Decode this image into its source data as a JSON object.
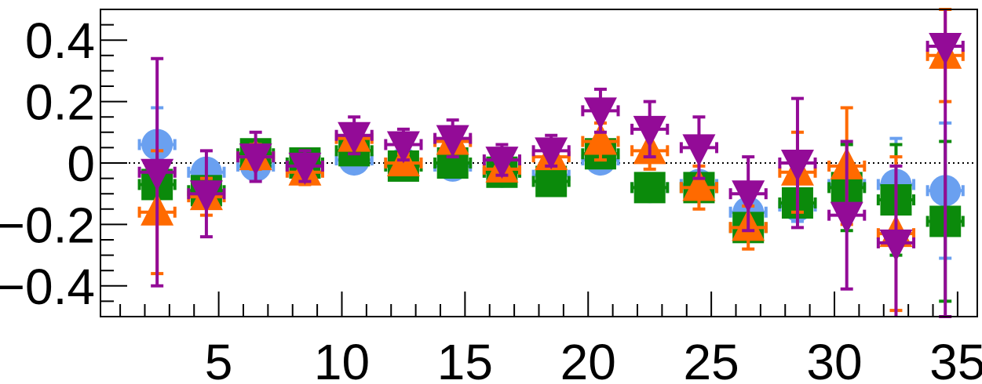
{
  "chart_data": {
    "type": "scatter",
    "title": "",
    "xlabel": "",
    "ylabel": "",
    "xlim": [
      0.2,
      35.8
    ],
    "ylim": [
      -0.5,
      0.5
    ],
    "x_ticks": [
      5,
      10,
      15,
      20,
      25,
      30,
      35
    ],
    "x_tick_labels": [
      "5",
      "10",
      "15",
      "20",
      "25",
      "30",
      "35"
    ],
    "y_ticks": [
      0.4,
      0.2,
      0,
      -0.2,
      -0.4
    ],
    "y_tick_labels": [
      "0.4",
      "0.2",
      "0",
      "−0.2",
      "−0.4"
    ],
    "reference_line_y": 0,
    "grid": false,
    "series": [
      {
        "marker": "circle",
        "color": "#6aa0f0",
        "x": [
          2.5,
          4.5,
          6.5,
          8.5,
          10.5,
          12.5,
          14.5,
          16.5,
          18.5,
          20.5,
          22.5,
          24.5,
          26.5,
          28.5,
          30.5,
          32.5,
          34.5
        ],
        "y": [
          0.06,
          -0.03,
          -0.01,
          -0.01,
          0.01,
          0.0,
          -0.01,
          -0.03,
          -0.04,
          0.01,
          -0.08,
          -0.07,
          -0.16,
          -0.14,
          -0.07,
          -0.07,
          -0.09
        ],
        "xerr": 1,
        "yerr": [
          0.12,
          0.04,
          0.04,
          0.04,
          0.03,
          0.03,
          0.03,
          0.03,
          0.03,
          0.03,
          0.03,
          0.03,
          0.05,
          0.05,
          0.06,
          0.15,
          0.22
        ]
      },
      {
        "marker": "square",
        "color": "#0b8a0b",
        "x": [
          2.5,
          4.5,
          6.5,
          8.5,
          10.5,
          12.5,
          14.5,
          16.5,
          18.5,
          20.5,
          22.5,
          24.5,
          26.5,
          28.5,
          30.5,
          32.5,
          34.5
        ],
        "y": [
          -0.07,
          -0.09,
          0.03,
          0.0,
          0.04,
          -0.01,
          0.0,
          -0.03,
          -0.06,
          0.03,
          -0.08,
          -0.08,
          -0.21,
          -0.13,
          -0.08,
          -0.12,
          -0.19
        ],
        "xerr": 1,
        "yerr": [
          0.04,
          0.03,
          0.03,
          0.03,
          0.02,
          0.02,
          0.02,
          0.02,
          0.02,
          0.02,
          0.02,
          0.02,
          0.04,
          0.04,
          0.14,
          0.18,
          0.26
        ]
      },
      {
        "marker": "triangle-up",
        "color": "#ff6a00",
        "x": [
          2.5,
          4.5,
          6.5,
          8.5,
          10.5,
          12.5,
          14.5,
          16.5,
          18.5,
          20.5,
          22.5,
          24.5,
          26.5,
          28.5,
          30.5,
          32.5,
          34.5
        ],
        "y": [
          -0.16,
          -0.11,
          0.02,
          -0.03,
          0.08,
          0.0,
          0.07,
          -0.02,
          0.02,
          0.07,
          0.04,
          -0.08,
          -0.21,
          -0.03,
          -0.01,
          -0.23,
          0.35
        ],
        "xerr": 1,
        "yerr": [
          0.2,
          0.06,
          0.04,
          0.04,
          0.03,
          0.03,
          0.03,
          0.03,
          0.03,
          0.06,
          0.06,
          0.07,
          0.07,
          0.13,
          0.19,
          0.25,
          0.15
        ]
      },
      {
        "marker": "triangle-down",
        "color": "#930b97",
        "x": [
          2.5,
          4.5,
          6.5,
          8.5,
          10.5,
          12.5,
          14.5,
          16.5,
          18.5,
          20.5,
          22.5,
          24.5,
          26.5,
          28.5,
          30.5,
          32.5,
          34.5
        ],
        "y": [
          -0.03,
          -0.1,
          0.02,
          -0.01,
          0.09,
          0.06,
          0.08,
          0.01,
          0.04,
          0.17,
          0.11,
          0.05,
          -0.1,
          0.0,
          -0.17,
          -0.26,
          0.38
        ],
        "xerr": 1,
        "yerr": [
          0.37,
          0.14,
          0.08,
          0.05,
          0.06,
          0.05,
          0.06,
          0.05,
          0.05,
          0.07,
          0.09,
          0.1,
          0.12,
          0.21,
          0.24,
          0.25,
          0.88
        ]
      }
    ]
  }
}
